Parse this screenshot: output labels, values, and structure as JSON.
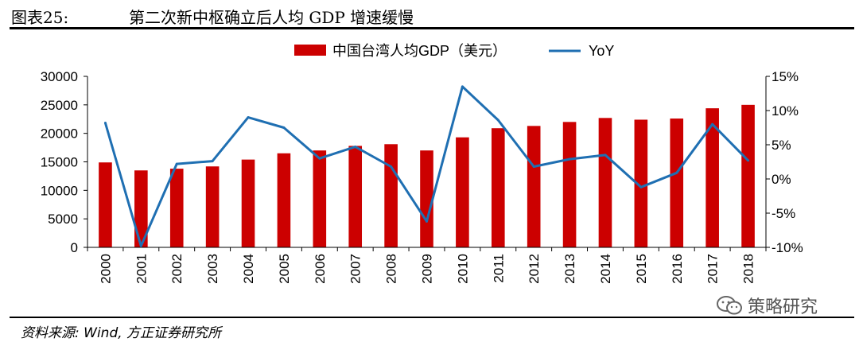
{
  "header": {
    "figure_label": "图表25:",
    "title": "第二次新中枢确立后人均 GDP 增速缓慢"
  },
  "footer": {
    "source": "资料来源: Wind, 方正证券研究所",
    "watermark": "策略研究"
  },
  "colors": {
    "bar": "#cc0000",
    "line": "#1f6fb2",
    "axis": "#000000"
  },
  "chart_data": {
    "type": "bar",
    "categories": [
      "2000",
      "2001",
      "2002",
      "2003",
      "2004",
      "2005",
      "2006",
      "2007",
      "2008",
      "2009",
      "2010",
      "2011",
      "2012",
      "2013",
      "2014",
      "2015",
      "2016",
      "2017",
      "2018"
    ],
    "series": [
      {
        "name": "中国台湾人均GDP（美元）",
        "type": "bar",
        "axis": "left",
        "values": [
          14900,
          13500,
          13800,
          14200,
          15400,
          16500,
          17000,
          17800,
          18100,
          17000,
          19300,
          20900,
          21300,
          22000,
          22700,
          22400,
          22600,
          24400,
          25000
        ]
      },
      {
        "name": "YoY",
        "type": "line",
        "axis": "right",
        "values": [
          8.2,
          -9.8,
          2.2,
          2.6,
          9.0,
          7.5,
          3.0,
          4.7,
          1.8,
          -6.2,
          13.5,
          8.6,
          1.8,
          2.9,
          3.5,
          -1.2,
          0.9,
          8.0,
          2.7
        ]
      }
    ],
    "y_left": {
      "ylim": [
        0,
        30000
      ],
      "ticks": [
        "0",
        "5000",
        "10000",
        "15000",
        "20000",
        "25000",
        "30000"
      ]
    },
    "y_right": {
      "ylim": [
        -10,
        15
      ],
      "ticks": [
        "-10%",
        "-5%",
        "0%",
        "5%",
        "10%",
        "15%"
      ]
    },
    "legend_position": "top-center",
    "grid": false
  }
}
